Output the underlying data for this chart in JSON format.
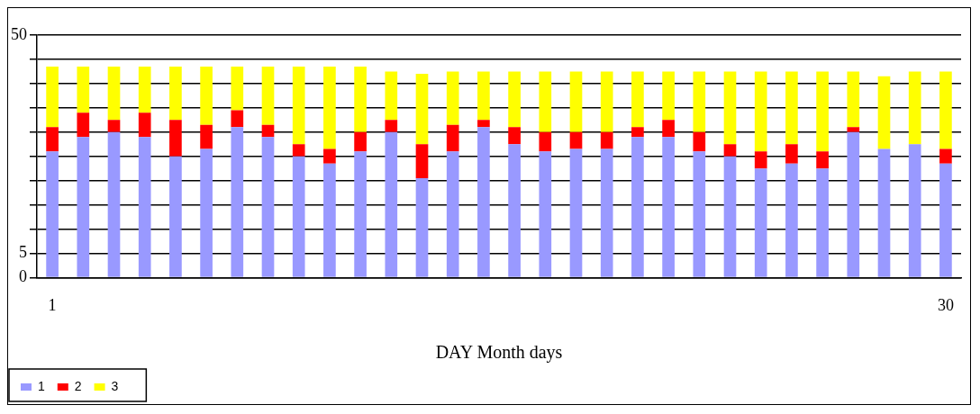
{
  "chart_data": {
    "type": "bar",
    "stacked": true,
    "xlabel": "DAY Month days",
    "categories": [
      "1",
      null,
      null,
      null,
      null,
      null,
      null,
      null,
      null,
      null,
      null,
      null,
      null,
      null,
      null,
      null,
      null,
      null,
      null,
      null,
      null,
      null,
      null,
      null,
      null,
      null,
      null,
      null,
      null,
      "30"
    ],
    "series": [
      {
        "name": "1",
        "color": "#9999ff",
        "values": [
          26,
          29,
          30,
          29,
          25,
          26.5,
          31,
          29,
          25,
          23.5,
          26,
          30,
          20.5,
          26,
          31,
          27.5,
          26,
          26.5,
          26.5,
          29,
          29,
          26,
          25,
          22.5,
          23.5,
          22.5,
          30,
          26.5,
          27.5,
          23.5
        ]
      },
      {
        "name": "2",
        "color": "#ff0000",
        "values": [
          5,
          5,
          2.5,
          5,
          7.5,
          5,
          3.5,
          2.5,
          2.5,
          3,
          4,
          2.5,
          7,
          5.5,
          1.5,
          3.5,
          4,
          3.5,
          3.5,
          2,
          3.5,
          4,
          2.5,
          3.5,
          4,
          3.5,
          1,
          0,
          0,
          3
        ]
      },
      {
        "name": "3",
        "color": "#ffff00",
        "values": [
          12.5,
          9.5,
          11,
          9.5,
          11,
          12,
          9,
          12,
          16,
          17,
          13.5,
          10,
          14.5,
          11,
          10,
          11.5,
          12.5,
          12.5,
          12.5,
          11.5,
          10,
          12.5,
          15,
          16.5,
          15,
          16.5,
          11.5,
          15,
          15,
          16
        ]
      }
    ],
    "ylim": [
      0,
      50
    ],
    "yticks": [
      0,
      5,
      {
        "value": 10,
        "label": null
      },
      {
        "value": 15,
        "label": null
      },
      {
        "value": 20,
        "label": null
      },
      {
        "value": 25,
        "label": null
      },
      {
        "value": 30,
        "label": null
      },
      {
        "value": 35,
        "label": null
      },
      {
        "value": 40,
        "label": null
      },
      {
        "value": 45,
        "label": null
      },
      50
    ],
    "grid": "y",
    "legend": "bottom left"
  }
}
